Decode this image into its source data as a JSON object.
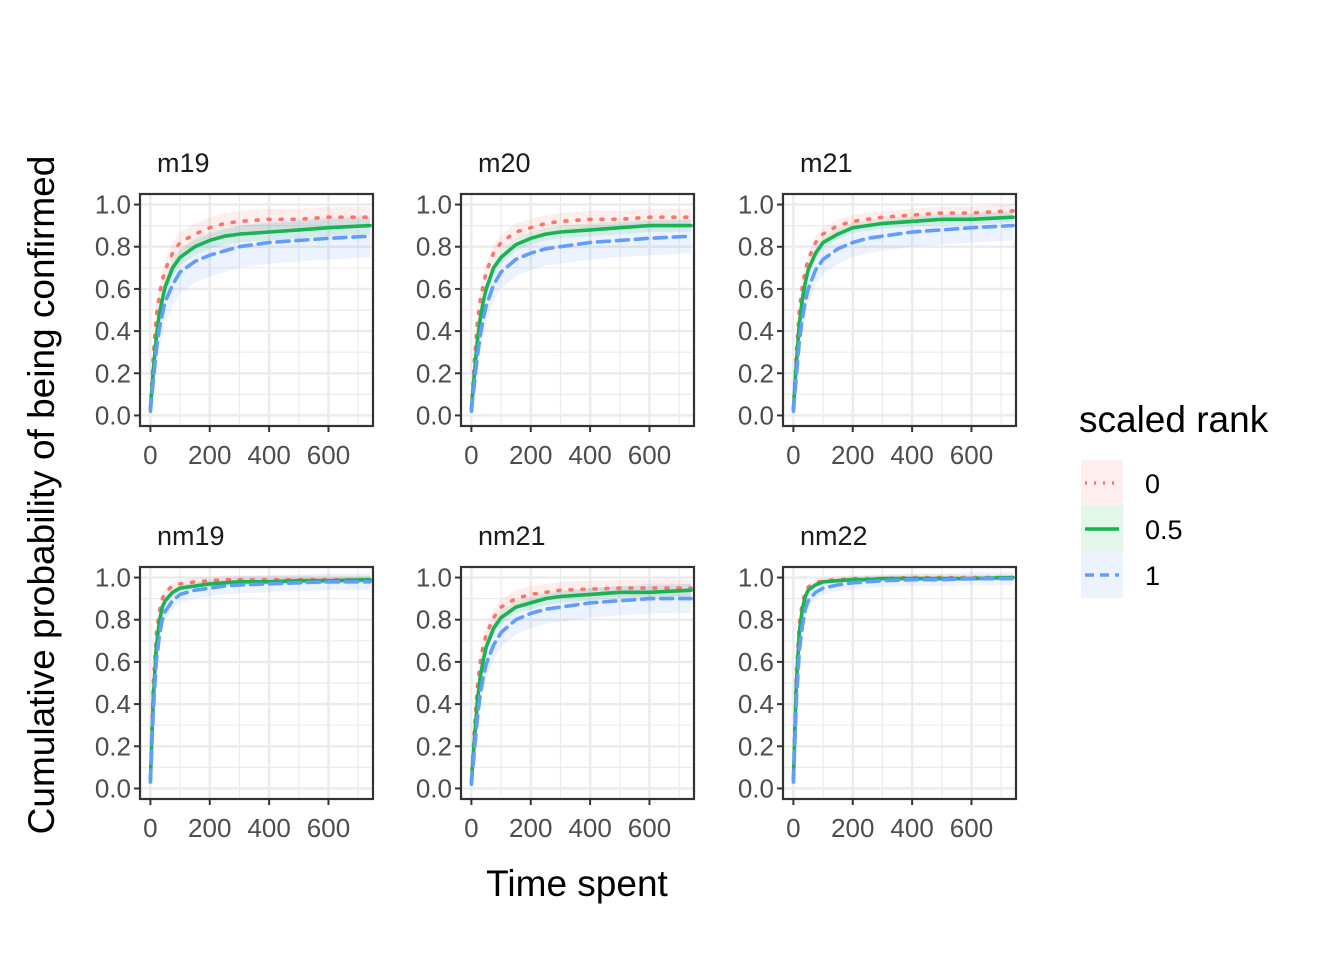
{
  "chart_data": {
    "type": "line",
    "title": "",
    "xlabel": "Time spent",
    "ylabel": "Cumulative probability of being confirmed",
    "xlim": [
      -35,
      750
    ],
    "ylim": [
      -0.05,
      1.05
    ],
    "x_ticks": [
      0,
      200,
      400,
      600
    ],
    "x_tick_labels": [
      "0",
      "200",
      "400",
      "600"
    ],
    "y_ticks": [
      0,
      0.2,
      0.4,
      0.6,
      0.8,
      1.0
    ],
    "y_tick_labels": [
      "0.0",
      "0.2",
      "0.4",
      "0.6",
      "0.8",
      "1.0"
    ],
    "grid": true,
    "legend": {
      "title": "scaled rank",
      "placement": "right",
      "entries": [
        {
          "label": "0",
          "color": "#F8766D",
          "style": "dotted"
        },
        {
          "label": "0.5",
          "color": "#1AB352",
          "style": "solid"
        },
        {
          "label": "1",
          "color": "#619CFF",
          "style": "dashed"
        }
      ]
    },
    "x": [
      0,
      10,
      20,
      30,
      40,
      50,
      75,
      100,
      150,
      200,
      250,
      300,
      400,
      500,
      600,
      740
    ],
    "panels": [
      {
        "title": "m19",
        "series": [
          {
            "name": "0",
            "values": [
              0.03,
              0.29,
              0.47,
              0.57,
              0.64,
              0.69,
              0.77,
              0.82,
              0.86,
              0.89,
              0.91,
              0.92,
              0.93,
              0.93,
              0.94,
              0.94
            ],
            "band": 0.05
          },
          {
            "name": "0.5",
            "values": [
              0.03,
              0.22,
              0.37,
              0.48,
              0.55,
              0.61,
              0.7,
              0.75,
              0.8,
              0.83,
              0.85,
              0.86,
              0.87,
              0.88,
              0.89,
              0.9
            ],
            "band": 0.04
          },
          {
            "name": "1",
            "values": [
              0.02,
              0.17,
              0.31,
              0.41,
              0.48,
              0.54,
              0.62,
              0.68,
              0.73,
              0.76,
              0.78,
              0.8,
              0.82,
              0.83,
              0.84,
              0.85
            ],
            "band": 0.1
          }
        ]
      },
      {
        "title": "m20",
        "series": [
          {
            "name": "0",
            "values": [
              0.03,
              0.26,
              0.44,
              0.55,
              0.62,
              0.68,
              0.77,
              0.82,
              0.87,
              0.89,
              0.91,
              0.92,
              0.93,
              0.93,
              0.94,
              0.94
            ],
            "band": 0.04
          },
          {
            "name": "0.5",
            "values": [
              0.03,
              0.2,
              0.35,
              0.46,
              0.54,
              0.6,
              0.7,
              0.75,
              0.81,
              0.84,
              0.86,
              0.87,
              0.88,
              0.89,
              0.9,
              0.9
            ],
            "band": 0.03
          },
          {
            "name": "1",
            "values": [
              0.02,
              0.15,
              0.28,
              0.38,
              0.46,
              0.52,
              0.62,
              0.68,
              0.74,
              0.77,
              0.79,
              0.8,
              0.82,
              0.83,
              0.84,
              0.85
            ],
            "band": 0.08
          }
        ]
      },
      {
        "title": "m21",
        "series": [
          {
            "name": "0",
            "values": [
              0.03,
              0.3,
              0.5,
              0.61,
              0.69,
              0.74,
              0.82,
              0.86,
              0.9,
              0.92,
              0.93,
              0.94,
              0.95,
              0.96,
              0.96,
              0.97
            ],
            "band": 0.03
          },
          {
            "name": "0.5",
            "values": [
              0.03,
              0.25,
              0.43,
              0.55,
              0.63,
              0.69,
              0.77,
              0.82,
              0.86,
              0.89,
              0.9,
              0.91,
              0.92,
              0.93,
              0.93,
              0.94
            ],
            "band": 0.025
          },
          {
            "name": "1",
            "values": [
              0.02,
              0.19,
              0.35,
              0.46,
              0.54,
              0.6,
              0.69,
              0.74,
              0.79,
              0.82,
              0.84,
              0.85,
              0.87,
              0.88,
              0.89,
              0.9
            ],
            "band": 0.07
          }
        ]
      },
      {
        "title": "nm19",
        "series": [
          {
            "name": "0",
            "values": [
              0.05,
              0.5,
              0.73,
              0.84,
              0.9,
              0.93,
              0.96,
              0.97,
              0.98,
              0.985,
              0.99,
              0.99,
              0.99,
              0.99,
              0.99,
              0.99
            ],
            "band": 0.02
          },
          {
            "name": "0.5",
            "values": [
              0.04,
              0.44,
              0.67,
              0.79,
              0.86,
              0.89,
              0.93,
              0.95,
              0.96,
              0.97,
              0.975,
              0.98,
              0.98,
              0.985,
              0.985,
              0.99
            ],
            "band": 0.015
          },
          {
            "name": "1",
            "values": [
              0.03,
              0.38,
              0.6,
              0.72,
              0.8,
              0.84,
              0.89,
              0.92,
              0.94,
              0.95,
              0.96,
              0.965,
              0.97,
              0.975,
              0.98,
              0.98
            ],
            "band": 0.04
          }
        ]
      },
      {
        "title": "nm21",
        "series": [
          {
            "name": "0",
            "values": [
              0.03,
              0.28,
              0.48,
              0.6,
              0.68,
              0.73,
              0.81,
              0.86,
              0.9,
              0.92,
              0.93,
              0.94,
              0.945,
              0.95,
              0.95,
              0.95
            ],
            "band": 0.04
          },
          {
            "name": "0.5",
            "values": [
              0.03,
              0.23,
              0.41,
              0.53,
              0.61,
              0.67,
              0.76,
              0.81,
              0.86,
              0.88,
              0.9,
              0.91,
              0.92,
              0.93,
              0.93,
              0.94
            ],
            "band": 0.03
          },
          {
            "name": "1",
            "values": [
              0.02,
              0.18,
              0.33,
              0.45,
              0.53,
              0.59,
              0.68,
              0.74,
              0.8,
              0.83,
              0.85,
              0.86,
              0.88,
              0.89,
              0.9,
              0.9
            ],
            "band": 0.07
          }
        ]
      },
      {
        "title": "nm22",
        "series": [
          {
            "name": "0",
            "values": [
              0.05,
              0.55,
              0.78,
              0.88,
              0.93,
              0.955,
              0.975,
              0.985,
              0.99,
              0.995,
              0.995,
              0.995,
              1.0,
              1.0,
              1.0,
              1.0
            ],
            "band": 0.015
          },
          {
            "name": "0.5",
            "values": [
              0.04,
              0.5,
              0.74,
              0.85,
              0.91,
              0.94,
              0.965,
              0.98,
              0.985,
              0.99,
              0.99,
              0.995,
              0.995,
              0.995,
              0.995,
              1.0
            ],
            "band": 0.01
          },
          {
            "name": "1",
            "values": [
              0.03,
              0.42,
              0.65,
              0.77,
              0.85,
              0.89,
              0.93,
              0.95,
              0.965,
              0.975,
              0.98,
              0.985,
              0.99,
              0.99,
              0.995,
              0.995
            ],
            "band": 0.03
          }
        ]
      }
    ]
  }
}
